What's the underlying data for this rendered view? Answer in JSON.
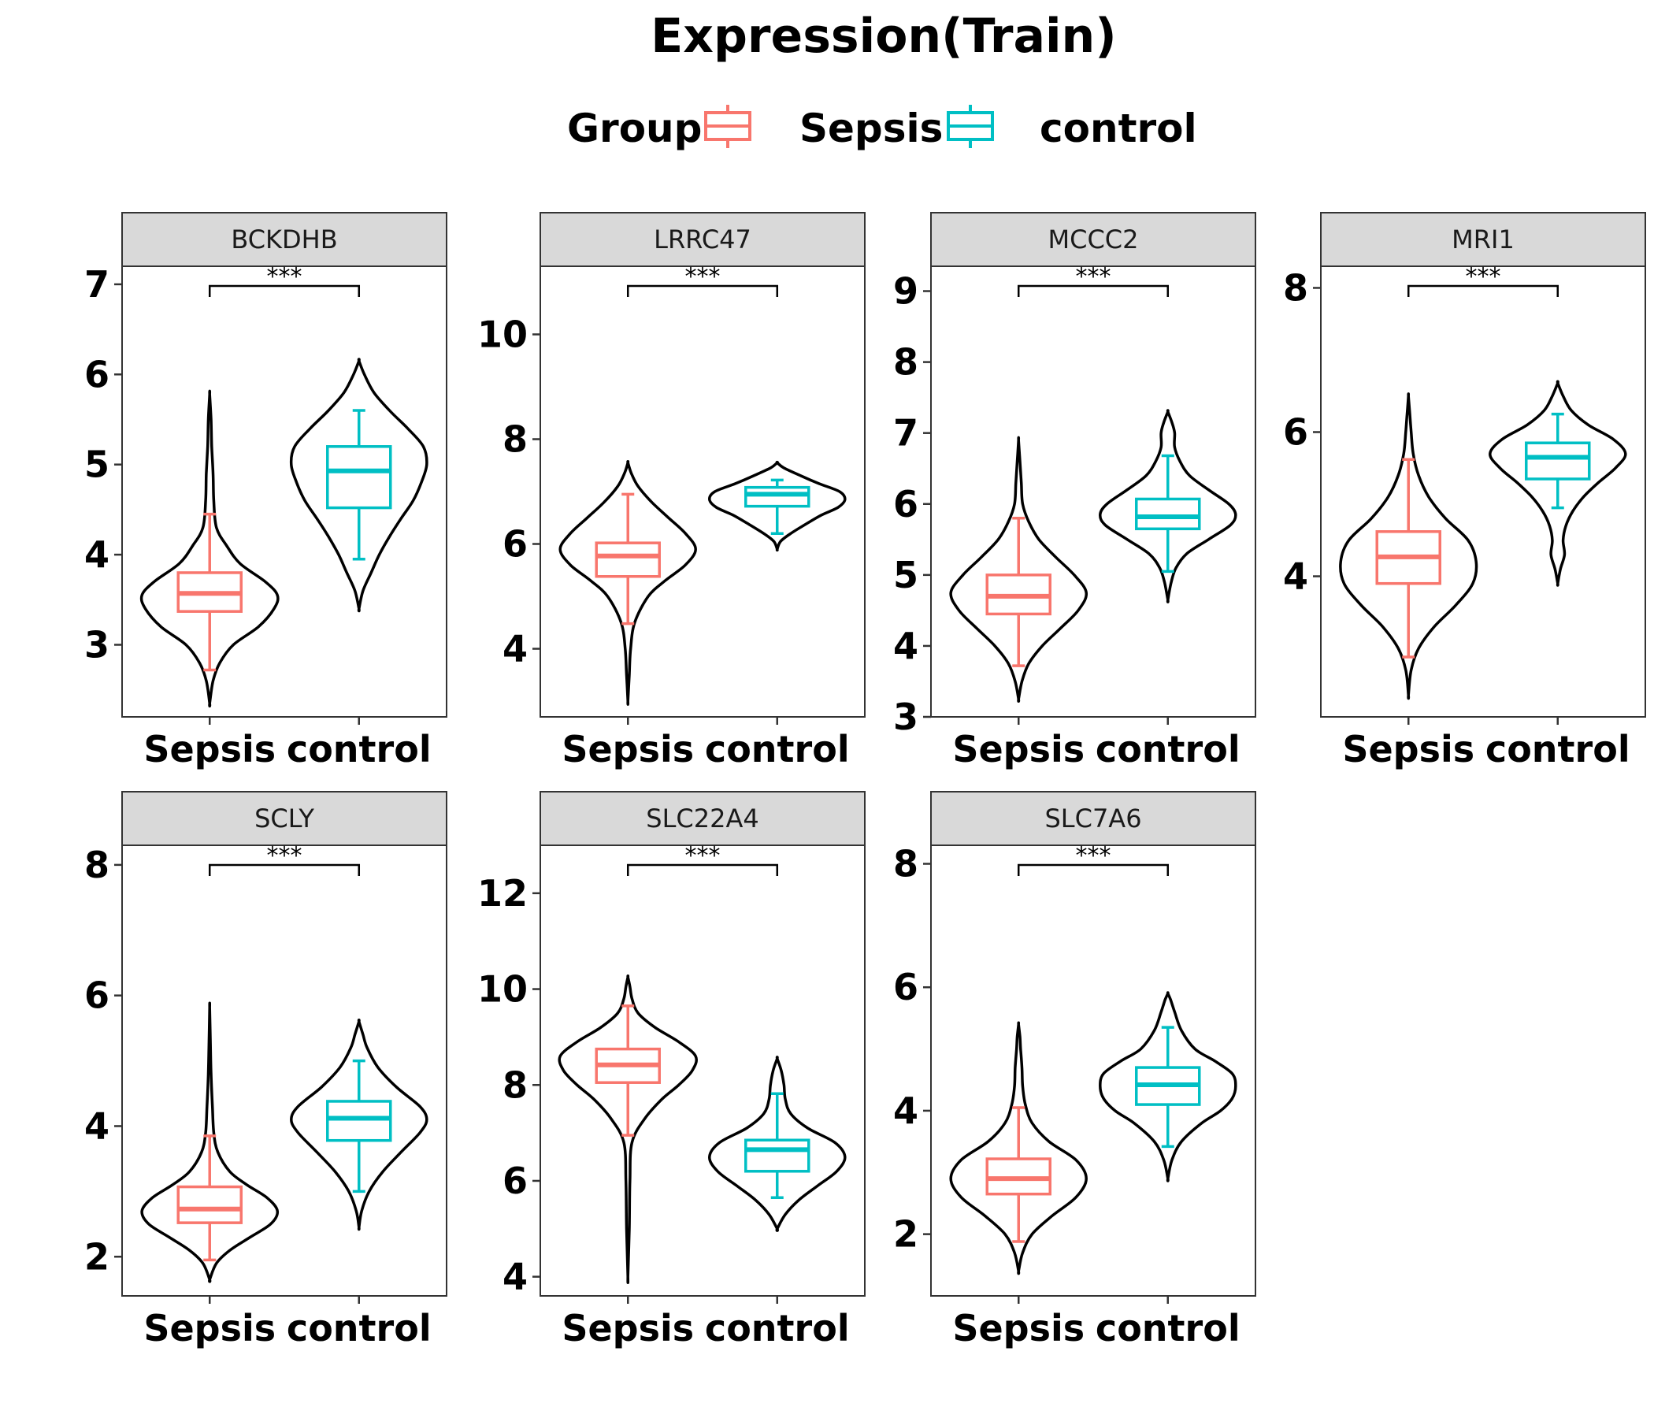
{
  "title": "Expression(Train)",
  "legend": {
    "title": "Group",
    "entries": [
      {
        "label": "Sepsis",
        "color": "#F8766D"
      },
      {
        "label": "control",
        "color": "#00BFC4"
      }
    ]
  },
  "chart_data": {
    "type": "violin-box",
    "groups": [
      "Sepsis",
      "control"
    ],
    "group_colors": {
      "Sepsis": "#F8766D",
      "control": "#00BFC4"
    },
    "panels": [
      {
        "name": "BCKDHB",
        "ylim": [
          2.2,
          7.2
        ],
        "yticks": [
          3,
          4,
          5,
          6,
          7
        ],
        "significance": "***",
        "box": {
          "Sepsis": {
            "min": 2.72,
            "q1": 3.37,
            "median": 3.57,
            "q3": 3.8,
            "max": 4.45
          },
          "control": {
            "min": 3.95,
            "q1": 4.52,
            "median": 4.93,
            "q3": 5.2,
            "max": 5.6
          }
        },
        "violin": {
          "Sepsis": {
            "y": [
              2.35,
              2.6,
              2.8,
              3.0,
              3.2,
              3.4,
              3.55,
              3.7,
              3.9,
              4.1,
              4.3,
              4.6,
              4.9,
              5.2,
              5.5,
              5.78
            ],
            "w": [
              0,
              0.05,
              0.15,
              0.35,
              0.72,
              0.95,
              1.0,
              0.82,
              0.45,
              0.25,
              0.1,
              0.06,
              0.05,
              0.03,
              0.02,
              0
            ]
          },
          "control": {
            "y": [
              3.4,
              3.6,
              3.8,
              4.0,
              4.2,
              4.4,
              4.6,
              4.8,
              5.0,
              5.2,
              5.4,
              5.6,
              5.8,
              6.0,
              6.15
            ],
            "w": [
              0,
              0.06,
              0.18,
              0.3,
              0.45,
              0.62,
              0.8,
              0.92,
              1.0,
              0.95,
              0.72,
              0.45,
              0.22,
              0.08,
              0
            ]
          }
        }
      },
      {
        "name": "LRRC47",
        "ylim": [
          2.7,
          11.3
        ],
        "yticks": [
          4,
          6,
          8,
          10
        ],
        "significance": "***",
        "box": {
          "Sepsis": {
            "min": 4.48,
            "q1": 5.38,
            "median": 5.77,
            "q3": 6.02,
            "max": 6.95
          },
          "control": {
            "min": 6.2,
            "q1": 6.72,
            "median": 6.95,
            "q3": 7.08,
            "max": 7.22
          }
        },
        "violin": {
          "Sepsis": {
            "y": [
              3.0,
              3.5,
              4.0,
              4.5,
              5.0,
              5.3,
              5.6,
              5.9,
              6.2,
              6.5,
              6.8,
              7.1,
              7.35,
              7.55
            ],
            "w": [
              0,
              0.02,
              0.04,
              0.1,
              0.3,
              0.55,
              0.85,
              1.0,
              0.85,
              0.6,
              0.35,
              0.15,
              0.05,
              0
            ]
          },
          "control": {
            "y": [
              5.9,
              6.05,
              6.2,
              6.4,
              6.55,
              6.7,
              6.85,
              7.0,
              7.15,
              7.3,
              7.45,
              7.55
            ],
            "w": [
              0,
              0.05,
              0.2,
              0.45,
              0.65,
              0.9,
              1.0,
              0.92,
              0.62,
              0.35,
              0.1,
              0
            ]
          }
        }
      },
      {
        "name": "MCCC2",
        "ylim": [
          3.0,
          9.35
        ],
        "yticks": [
          3,
          4,
          5,
          6,
          7,
          8,
          9
        ],
        "significance": "***",
        "box": {
          "Sepsis": {
            "min": 3.72,
            "q1": 4.45,
            "median": 4.7,
            "q3": 5.0,
            "max": 5.8
          },
          "control": {
            "min": 5.05,
            "q1": 5.65,
            "median": 5.82,
            "q3": 6.07,
            "max": 6.68
          }
        },
        "violin": {
          "Sepsis": {
            "y": [
              3.25,
              3.5,
              3.75,
              4.0,
              4.25,
              4.5,
              4.75,
              5.0,
              5.25,
              5.5,
              5.75,
              6.0,
              6.3,
              6.6,
              6.9
            ],
            "w": [
              0,
              0.05,
              0.15,
              0.35,
              0.62,
              0.88,
              1.0,
              0.82,
              0.55,
              0.3,
              0.15,
              0.06,
              0.04,
              0.02,
              0
            ]
          },
          "control": {
            "y": [
              4.65,
              4.9,
              5.1,
              5.3,
              5.5,
              5.7,
              5.85,
              6.0,
              6.2,
              6.4,
              6.6,
              6.8,
              7.0,
              7.15,
              7.3
            ],
            "w": [
              0,
              0.05,
              0.12,
              0.28,
              0.6,
              0.92,
              1.0,
              0.9,
              0.6,
              0.32,
              0.18,
              0.1,
              0.1,
              0.06,
              0
            ]
          }
        }
      },
      {
        "name": "MRI1",
        "ylim": [
          2.05,
          8.3
        ],
        "yticks": [
          4,
          6,
          8
        ],
        "significance": "***",
        "box": {
          "Sepsis": {
            "min": 2.88,
            "q1": 3.9,
            "median": 4.27,
            "q3": 4.62,
            "max": 5.62
          },
          "control": {
            "min": 4.95,
            "q1": 5.35,
            "median": 5.65,
            "q3": 5.85,
            "max": 6.25
          }
        },
        "violin": {
          "Sepsis": {
            "y": [
              2.35,
              2.7,
              3.0,
              3.3,
              3.6,
              3.9,
              4.2,
              4.5,
              4.8,
              5.1,
              5.4,
              5.7,
              6.0,
              6.25,
              6.5
            ],
            "w": [
              0,
              0.04,
              0.15,
              0.38,
              0.7,
              0.95,
              1.0,
              0.88,
              0.55,
              0.3,
              0.15,
              0.07,
              0.04,
              0.02,
              0
            ]
          },
          "control": {
            "y": [
              3.9,
              4.1,
              4.3,
              4.5,
              4.7,
              4.9,
              5.1,
              5.3,
              5.5,
              5.7,
              5.9,
              6.1,
              6.3,
              6.5,
              6.68
            ],
            "w": [
              0,
              0.04,
              0.1,
              0.08,
              0.12,
              0.22,
              0.38,
              0.6,
              0.85,
              1.0,
              0.82,
              0.45,
              0.2,
              0.08,
              0
            ]
          }
        }
      },
      {
        "name": "SCLY",
        "ylim": [
          1.4,
          8.3
        ],
        "yticks": [
          2,
          4,
          6,
          8
        ],
        "significance": "***",
        "box": {
          "Sepsis": {
            "min": 1.95,
            "q1": 2.52,
            "median": 2.73,
            "q3": 3.07,
            "max": 3.85
          },
          "control": {
            "min": 3.0,
            "q1": 3.78,
            "median": 4.12,
            "q3": 4.38,
            "max": 5.0
          }
        },
        "violin": {
          "Sepsis": {
            "y": [
              1.65,
              1.9,
              2.1,
              2.3,
              2.5,
              2.7,
              2.9,
              3.1,
              3.3,
              3.6,
              3.9,
              4.3,
              4.8,
              5.3,
              5.82
            ],
            "w": [
              0,
              0.1,
              0.3,
              0.6,
              0.9,
              1.0,
              0.85,
              0.55,
              0.3,
              0.12,
              0.06,
              0.04,
              0.02,
              0.01,
              0
            ]
          },
          "control": {
            "y": [
              2.45,
              2.7,
              3.0,
              3.3,
              3.6,
              3.9,
              4.1,
              4.3,
              4.6,
              4.9,
              5.2,
              5.4,
              5.6
            ],
            "w": [
              0,
              0.04,
              0.15,
              0.35,
              0.62,
              0.9,
              1.0,
              0.9,
              0.55,
              0.28,
              0.12,
              0.06,
              0
            ]
          }
        }
      },
      {
        "name": "SLC22A4",
        "ylim": [
          3.6,
          13.0
        ],
        "yticks": [
          4,
          6,
          8,
          10,
          12
        ],
        "significance": "***",
        "box": {
          "Sepsis": {
            "min": 6.95,
            "q1": 8.05,
            "median": 8.42,
            "q3": 8.75,
            "max": 9.65
          },
          "control": {
            "min": 5.65,
            "q1": 6.2,
            "median": 6.65,
            "q3": 6.85,
            "max": 7.82
          }
        },
        "violin": {
          "Sepsis": {
            "y": [
              4.0,
              5.0,
              6.0,
              6.8,
              7.3,
              7.7,
              8.0,
              8.3,
              8.6,
              8.9,
              9.2,
              9.5,
              9.8,
              10.05,
              10.25
            ],
            "w": [
              0,
              0.02,
              0.03,
              0.06,
              0.25,
              0.5,
              0.75,
              0.95,
              1.0,
              0.75,
              0.4,
              0.15,
              0.06,
              0.03,
              0
            ]
          },
          "control": {
            "y": [
              5.0,
              5.3,
              5.6,
              5.9,
              6.2,
              6.5,
              6.8,
              7.1,
              7.4,
              7.7,
              8.0,
              8.3,
              8.55
            ],
            "w": [
              0,
              0.12,
              0.32,
              0.6,
              0.88,
              1.0,
              0.85,
              0.45,
              0.2,
              0.12,
              0.1,
              0.06,
              0
            ]
          }
        }
      },
      {
        "name": "SLC7A6",
        "ylim": [
          1.0,
          8.3
        ],
        "yticks": [
          2,
          4,
          6,
          8
        ],
        "significance": "***",
        "box": {
          "Sepsis": {
            "min": 1.88,
            "q1": 2.65,
            "median": 2.9,
            "q3": 3.22,
            "max": 4.05
          },
          "control": {
            "min": 3.42,
            "q1": 4.1,
            "median": 4.42,
            "q3": 4.7,
            "max": 5.35
          }
        },
        "violin": {
          "Sepsis": {
            "y": [
              1.4,
              1.7,
              2.0,
              2.3,
              2.6,
              2.9,
              3.2,
              3.5,
              3.8,
              4.1,
              4.4,
              4.7,
              5.0,
              5.2,
              5.4
            ],
            "w": [
              0,
              0.06,
              0.2,
              0.5,
              0.85,
              1.0,
              0.85,
              0.45,
              0.2,
              0.1,
              0.06,
              0.05,
              0.03,
              0.02,
              0
            ]
          },
          "control": {
            "y": [
              2.9,
              3.2,
              3.5,
              3.8,
              4.0,
              4.2,
              4.4,
              4.6,
              4.8,
              5.0,
              5.3,
              5.6,
              5.8,
              5.9
            ],
            "w": [
              0,
              0.06,
              0.2,
              0.5,
              0.78,
              0.95,
              1.0,
              0.95,
              0.7,
              0.4,
              0.2,
              0.1,
              0.04,
              0
            ]
          }
        }
      }
    ]
  }
}
